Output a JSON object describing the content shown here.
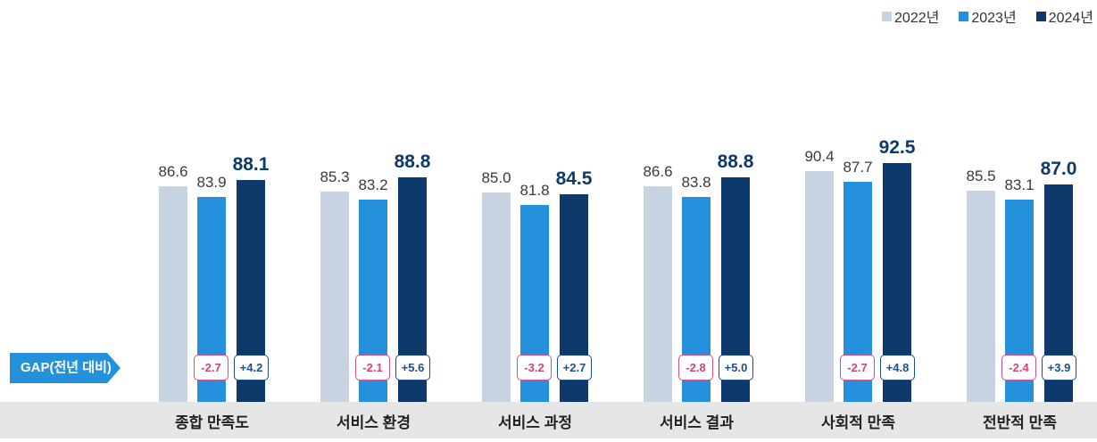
{
  "legend": [
    {
      "label": "2022년",
      "color": "#c7d3e0"
    },
    {
      "label": "2023년",
      "color": "#2590db"
    },
    {
      "label": "2024년",
      "color": "#0e3a6b"
    }
  ],
  "gap_label": "GAP(전년 대비)",
  "chart_data": {
    "type": "bar",
    "title": "",
    "xlabel": "",
    "ylabel": "",
    "categories": [
      "종합 만족도",
      "서비스 환경",
      "서비스 과정",
      "서비스 결과",
      "사회적 만족",
      "전반적 만족"
    ],
    "series": [
      {
        "name": "2022년",
        "color": "#c7d3e0",
        "values": [
          86.6,
          85.3,
          85.0,
          86.6,
          90.4,
          85.5
        ]
      },
      {
        "name": "2023년",
        "color": "#2590db",
        "values": [
          83.9,
          83.2,
          81.8,
          83.8,
          87.7,
          83.1
        ]
      },
      {
        "name": "2024년",
        "color": "#0e3a6b",
        "values": [
          88.1,
          88.8,
          84.5,
          88.8,
          92.5,
          87.0
        ]
      }
    ],
    "gap_2023_vs_2022": [
      "-2.7",
      "-2.1",
      "-3.2",
      "-2.8",
      "-2.7",
      "-2.4"
    ],
    "gap_2024_vs_2023": [
      "+4.2",
      "+5.6",
      "+2.7",
      "+5.0",
      "+4.8",
      "+3.9"
    ],
    "grid": false,
    "legend_position": "top-right",
    "value_labels": true
  }
}
